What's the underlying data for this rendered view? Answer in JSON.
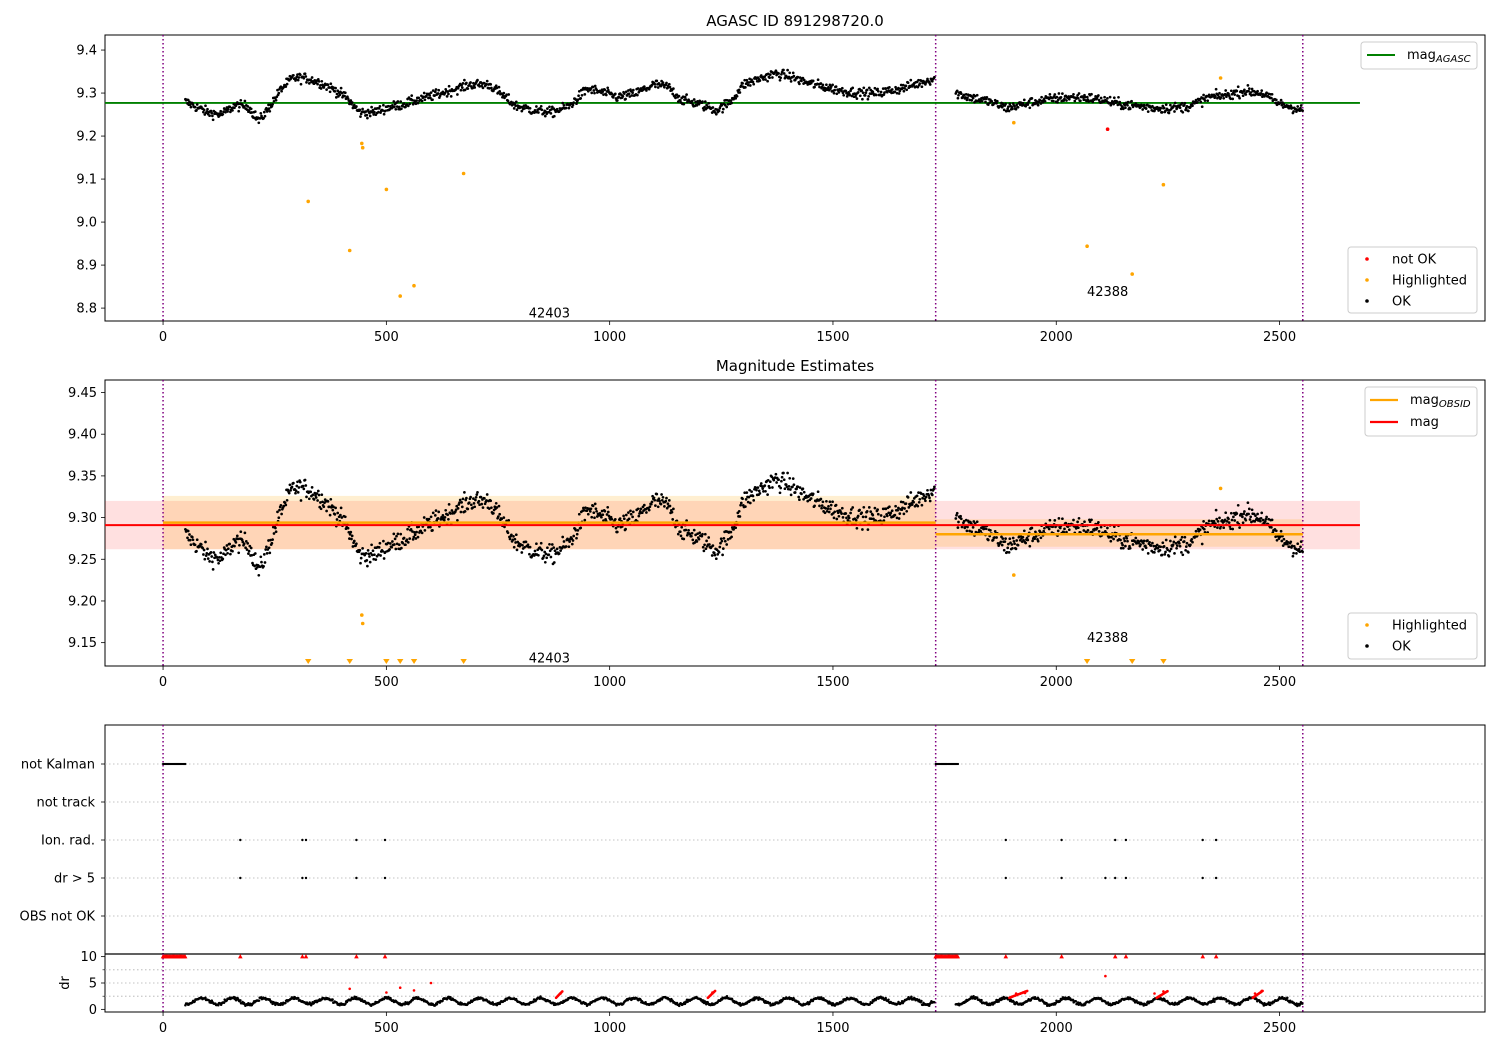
{
  "chart_data": [
    {
      "type": "scatter",
      "title": "AGASC ID 891298720.0",
      "xlim": [
        -130,
        2960
      ],
      "ylim": [
        8.77,
        9.435
      ],
      "x_ticks": [
        0,
        500,
        1000,
        1500,
        2000,
        2500
      ],
      "y_ticks": [
        8.8,
        8.9,
        9.0,
        9.1,
        9.2,
        9.3,
        9.4
      ],
      "vlines": [
        0,
        1730,
        2552
      ],
      "obsid_labels": [
        {
          "text": "42403",
          "x": 865,
          "y": 8.79
        },
        {
          "text": "42388",
          "x": 2115,
          "y": 8.84
        }
      ],
      "mag_agasc": {
        "value": 9.277,
        "x_range": [
          -130,
          2680
        ],
        "color": "#008000"
      },
      "legend_top": [
        {
          "label": "mag",
          "sub": "AGASC",
          "color": "#008000"
        }
      ],
      "legend_bottom": [
        {
          "label": "not OK",
          "color": "#ff0000"
        },
        {
          "label": "Highlighted",
          "color": "#ffa500"
        },
        {
          "label": "OK",
          "color": "#000000"
        }
      ],
      "ok_segments": [
        {
          "x0": 50,
          "x1": 1728,
          "anchors": [
            [
              50,
              9.28
            ],
            [
              100,
              9.255
            ],
            [
              130,
              9.25
            ],
            [
              160,
              9.27
            ],
            [
              190,
              9.27
            ],
            [
              215,
              9.235
            ],
            [
              240,
              9.27
            ],
            [
              265,
              9.31
            ],
            [
              290,
              9.335
            ],
            [
              320,
              9.335
            ],
            [
              350,
              9.325
            ],
            [
              380,
              9.31
            ],
            [
              410,
              9.29
            ],
            [
              440,
              9.255
            ],
            [
              470,
              9.255
            ],
            [
              500,
              9.265
            ],
            [
              540,
              9.275
            ],
            [
              590,
              9.29
            ],
            [
              640,
              9.305
            ],
            [
              690,
              9.32
            ],
            [
              730,
              9.32
            ],
            [
              760,
              9.295
            ],
            [
              790,
              9.27
            ],
            [
              830,
              9.26
            ],
            [
              870,
              9.255
            ],
            [
              910,
              9.27
            ],
            [
              950,
              9.31
            ],
            [
              990,
              9.3
            ],
            [
              1020,
              9.29
            ],
            [
              1060,
              9.3
            ],
            [
              1100,
              9.32
            ],
            [
              1130,
              9.315
            ],
            [
              1160,
              9.285
            ],
            [
              1200,
              9.275
            ],
            [
              1240,
              9.26
            ],
            [
              1270,
              9.28
            ],
            [
              1300,
              9.32
            ],
            [
              1340,
              9.335
            ],
            [
              1370,
              9.345
            ],
            [
              1400,
              9.34
            ],
            [
              1440,
              9.325
            ],
            [
              1480,
              9.315
            ],
            [
              1520,
              9.305
            ],
            [
              1560,
              9.3
            ],
            [
              1600,
              9.3
            ],
            [
              1650,
              9.31
            ],
            [
              1700,
              9.325
            ],
            [
              1728,
              9.335
            ]
          ]
        },
        {
          "x0": 1775,
          "x1": 2552,
          "anchors": [
            [
              1775,
              9.3
            ],
            [
              1810,
              9.29
            ],
            [
              1850,
              9.28
            ],
            [
              1890,
              9.265
            ],
            [
              1930,
              9.275
            ],
            [
              1980,
              9.285
            ],
            [
              2020,
              9.29
            ],
            [
              2060,
              9.29
            ],
            [
              2100,
              9.285
            ],
            [
              2140,
              9.275
            ],
            [
              2180,
              9.27
            ],
            [
              2220,
              9.265
            ],
            [
              2260,
              9.265
            ],
            [
              2300,
              9.27
            ],
            [
              2340,
              9.29
            ],
            [
              2380,
              9.295
            ],
            [
              2420,
              9.305
            ],
            [
              2460,
              9.3
            ],
            [
              2500,
              9.275
            ],
            [
              2552,
              9.26
            ]
          ]
        }
      ],
      "highlighted": [
        [
          325,
          9.048
        ],
        [
          418,
          8.934
        ],
        [
          445,
          9.183
        ],
        [
          447,
          9.173
        ],
        [
          500,
          9.076
        ],
        [
          531,
          8.828
        ],
        [
          562,
          8.852
        ],
        [
          673,
          9.113
        ],
        [
          1905,
          9.231
        ],
        [
          2069,
          8.944
        ],
        [
          2170,
          8.879
        ],
        [
          2240,
          9.087
        ],
        [
          2368,
          9.335
        ]
      ],
      "not_ok": [
        [
          2115,
          9.216
        ]
      ]
    },
    {
      "type": "scatter",
      "title": "Magnitude Estimates",
      "xlim": [
        -130,
        2960
      ],
      "ylim": [
        9.122,
        9.465
      ],
      "x_ticks": [
        0,
        500,
        1000,
        1500,
        2000,
        2500
      ],
      "y_ticks": [
        9.15,
        9.2,
        9.25,
        9.3,
        9.35,
        9.4,
        9.45
      ],
      "vlines": [
        0,
        1730,
        2552
      ],
      "obsid_labels": [
        {
          "text": "42403",
          "x": 865,
          "y": 9.132
        },
        {
          "text": "42388",
          "x": 2115,
          "y": 9.157
        }
      ],
      "mag": {
        "value": 9.291,
        "band": [
          9.262,
          9.32
        ],
        "x_range": [
          -130,
          2680
        ],
        "color": "#ff0000"
      },
      "mag_obsid": [
        {
          "x_range": [
            0,
            1730
          ],
          "value": 9.294,
          "band": [
            9.262,
            9.326
          ]
        },
        {
          "x_range": [
            1730,
            2552
          ],
          "value": 9.28,
          "band": [
            9.265,
            9.298
          ]
        }
      ],
      "legend_top": [
        {
          "label": "mag",
          "sub": "OBSID",
          "color": "#ffa500"
        },
        {
          "label": "mag",
          "sub": "",
          "color": "#ff0000"
        }
      ],
      "legend_bottom": [
        {
          "label": "Highlighted",
          "color": "#ffa500"
        },
        {
          "label": "OK",
          "color": "#000000"
        }
      ],
      "below_limit_markers": [
        325,
        418,
        500,
        531,
        562,
        673,
        2069,
        2170,
        2240
      ],
      "highlighted_in_range": [
        [
          445,
          9.183
        ],
        [
          447,
          9.173
        ],
        [
          1905,
          9.231
        ],
        [
          2368,
          9.335
        ]
      ]
    },
    {
      "type": "scatter",
      "title": "",
      "xlim": [
        -130,
        2960
      ],
      "categories": [
        "not Kalman",
        "not track",
        "Ion. rad.",
        "dr > 5",
        "OBS not OK"
      ],
      "vlines": [
        0,
        1730,
        2552
      ],
      "not_kalman_ranges": [
        [
          0,
          50
        ],
        [
          1730,
          1780
        ]
      ],
      "ion_rad_x": [
        173,
        312,
        320,
        433,
        497,
        1887,
        2012,
        2132,
        2156,
        2328,
        2358
      ],
      "dr5_x": [
        173,
        312,
        320,
        433,
        497,
        1887,
        2012,
        2110,
        2132,
        2156,
        2328,
        2358
      ]
    },
    {
      "type": "scatter",
      "title": "",
      "xlim": [
        -130,
        2960
      ],
      "ylim": [
        -0.5,
        10.5
      ],
      "y_ticks": [
        0,
        5,
        10
      ],
      "ylabel": "dr",
      "x_ticks": [
        0,
        500,
        1000,
        1500,
        2000,
        2500
      ],
      "vlines": [
        0,
        1730,
        2552
      ],
      "clip_value": 10,
      "clipped_ranges": [
        [
          0,
          50
        ],
        [
          1730,
          1780
        ]
      ],
      "clipped_x": [
        173,
        312,
        320,
        433,
        497,
        1887,
        2012,
        2132,
        2156,
        2328,
        2358
      ],
      "red_points": [
        [
          418,
          3.9
        ],
        [
          500,
          3.2
        ],
        [
          531,
          4.1
        ],
        [
          562,
          3.6
        ],
        [
          600,
          5.0
        ],
        [
          890,
          3.0
        ],
        [
          1230,
          3.2
        ],
        [
          1910,
          3.0
        ],
        [
          1930,
          3.1
        ],
        [
          2110,
          6.3
        ],
        [
          2220,
          3.0
        ],
        [
          2240,
          3.4
        ],
        [
          2445,
          3.0
        ],
        [
          2460,
          3.5
        ]
      ],
      "red_streaks": [
        [
          880,
          895
        ],
        [
          1220,
          1236
        ],
        [
          1895,
          1935
        ],
        [
          2225,
          2250
        ],
        [
          2440,
          2462
        ]
      ],
      "ok_ranges": [
        [
          50,
          1728
        ],
        [
          1775,
          2552
        ]
      ]
    }
  ]
}
